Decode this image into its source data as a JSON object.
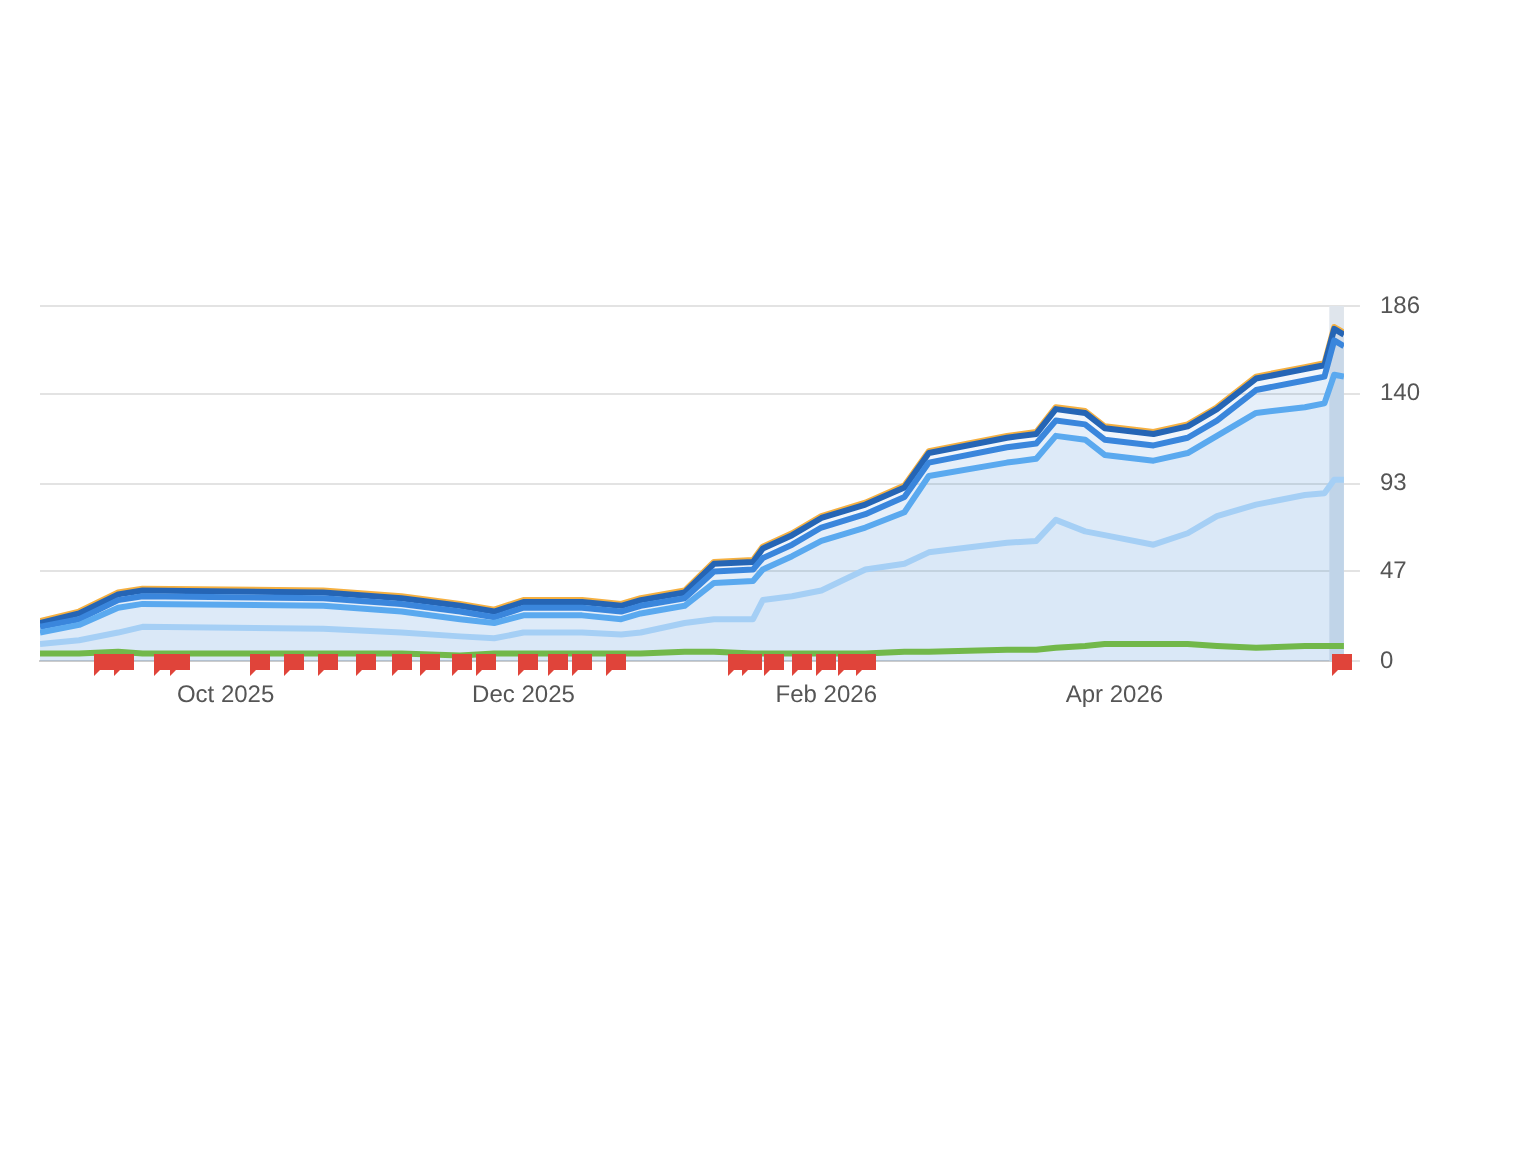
{
  "chart_data": {
    "type": "area",
    "x": [
      "2025-08-24",
      "2025-09-01",
      "2025-09-09",
      "2025-09-14",
      "2025-10-21",
      "2025-11-06",
      "2025-11-18",
      "2025-11-25",
      "2025-12-01",
      "2025-12-13",
      "2025-12-21",
      "2025-12-25",
      "2026-01-03",
      "2026-01-09",
      "2026-01-17",
      "2026-01-19",
      "2026-01-25",
      "2026-01-31",
      "2026-02-09",
      "2026-02-17",
      "2026-02-22",
      "2026-03-10",
      "2026-03-16",
      "2026-03-20",
      "2026-03-26",
      "2026-03-30",
      "2026-04-09",
      "2026-04-16",
      "2026-04-22",
      "2026-04-30",
      "2026-05-10",
      "2026-05-14",
      "2026-05-16",
      "2026-05-18"
    ],
    "series": [
      {
        "type": "line",
        "color": "#f5b041",
        "values": [
          21,
          26,
          36,
          38,
          37,
          34,
          30,
          27,
          32,
          32,
          30,
          33,
          37,
          52,
          53,
          60,
          67,
          76,
          83,
          92,
          110,
          118,
          120,
          133,
          131,
          123,
          120,
          124,
          133,
          149,
          154,
          156,
          175,
          172
        ]
      },
      {
        "type": "area",
        "color": "#2565b5",
        "values": [
          20,
          25,
          35,
          37,
          36,
          33,
          29,
          26,
          31,
          31,
          29,
          32,
          36,
          51,
          52,
          59,
          66,
          75,
          82,
          91,
          109,
          117,
          119,
          132,
          130,
          122,
          119,
          123,
          132,
          148,
          153,
          155,
          174,
          171
        ]
      },
      {
        "type": "area",
        "color": "#3a86dc",
        "values": [
          18,
          22,
          32,
          34,
          33,
          30,
          26,
          23,
          28,
          28,
          26,
          29,
          33,
          47,
          48,
          54,
          61,
          70,
          77,
          86,
          104,
          112,
          114,
          126,
          124,
          116,
          113,
          117,
          126,
          142,
          147,
          149,
          168,
          165
        ]
      },
      {
        "type": "area",
        "color": "#5aa9ef",
        "values": [
          15,
          19,
          28,
          30,
          29,
          26,
          22,
          20,
          24,
          24,
          22,
          25,
          29,
          41,
          42,
          48,
          55,
          63,
          70,
          78,
          97,
          104,
          106,
          118,
          116,
          108,
          105,
          109,
          118,
          130,
          133,
          135,
          150,
          149
        ]
      },
      {
        "type": "area",
        "color": "#a5cff5",
        "values": [
          9,
          11,
          15,
          18,
          17,
          15,
          13,
          12,
          15,
          15,
          14,
          15,
          20,
          22,
          22,
          32,
          34,
          37,
          48,
          51,
          57,
          62,
          63,
          74,
          68,
          66,
          61,
          67,
          76,
          82,
          87,
          88,
          95,
          95
        ]
      },
      {
        "type": "line",
        "color": "#72b84a",
        "values": [
          4,
          4,
          5,
          4,
          4,
          4,
          3,
          4,
          4,
          4,
          4,
          4,
          5,
          5,
          4,
          4,
          4,
          4,
          4,
          5,
          5,
          6,
          6,
          7,
          8,
          9,
          9,
          9,
          8,
          7,
          8,
          8,
          8,
          8
        ]
      }
    ],
    "xlim": [
      "2025-08-24",
      "2026-05-18"
    ],
    "xticks": [
      {
        "value": "2025-10-01",
        "label": "Oct 2025"
      },
      {
        "value": "2025-12-01",
        "label": "Dec 2025"
      },
      {
        "value": "2026-02-01",
        "label": "Feb 2026"
      },
      {
        "value": "2026-04-01",
        "label": "Apr 2026"
      }
    ],
    "ylim": [
      0,
      186
    ],
    "yticks": [
      0,
      47,
      93,
      140,
      186
    ],
    "bands": [
      {
        "axis": "x",
        "from": "2026-05-15",
        "to": "2026-05-18",
        "color": "#dfe5ec"
      }
    ],
    "grid": "y",
    "legend": false,
    "marker": "none",
    "line_style": "solid"
  }
}
